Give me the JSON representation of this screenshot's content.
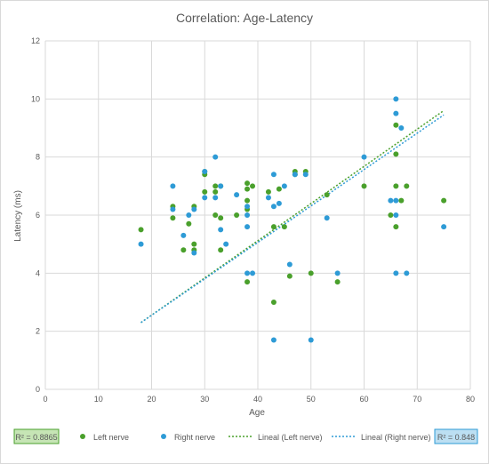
{
  "chart_data": {
    "type": "scatter",
    "title": "Correlation: Age-Latency",
    "xlabel": "Age",
    "ylabel": "Latency (ms)",
    "xlim": [
      0,
      80
    ],
    "ylim": [
      0,
      12
    ],
    "x_ticks": [
      "0",
      "10",
      "20",
      "30",
      "40",
      "50",
      "60",
      "70",
      "80"
    ],
    "y_ticks": [
      "0",
      "2",
      "4",
      "6",
      "8",
      "10",
      "12"
    ],
    "grid": "major-both",
    "legend_position": "bottom",
    "series": [
      {
        "name": "Left nerve",
        "color": "#4aa02c",
        "points": [
          [
            18,
            5.5
          ],
          [
            24,
            5.9
          ],
          [
            24,
            6.3
          ],
          [
            26,
            4.8
          ],
          [
            27,
            5.7
          ],
          [
            28,
            5.0
          ],
          [
            28,
            4.8
          ],
          [
            28,
            6.3
          ],
          [
            30,
            6.8
          ],
          [
            30,
            7.4
          ],
          [
            30,
            7.5
          ],
          [
            32,
            6.8
          ],
          [
            32,
            7.0
          ],
          [
            32,
            6.0
          ],
          [
            33,
            4.8
          ],
          [
            33,
            5.9
          ],
          [
            33,
            7.0
          ],
          [
            36,
            6.0
          ],
          [
            38,
            3.7
          ],
          [
            38,
            6.2
          ],
          [
            38,
            6.5
          ],
          [
            38,
            6.9
          ],
          [
            38,
            7.1
          ],
          [
            39,
            7.0
          ],
          [
            42,
            6.8
          ],
          [
            43,
            3.0
          ],
          [
            43,
            5.6
          ],
          [
            44,
            6.9
          ],
          [
            45,
            5.6
          ],
          [
            46,
            3.9
          ],
          [
            47,
            7.4
          ],
          [
            47,
            7.5
          ],
          [
            49,
            7.5
          ],
          [
            50,
            4.0
          ],
          [
            53,
            6.7
          ],
          [
            55,
            3.7
          ],
          [
            60,
            7.0
          ],
          [
            65,
            6.0
          ],
          [
            66,
            5.6
          ],
          [
            66,
            7.0
          ],
          [
            66,
            8.1
          ],
          [
            66,
            9.1
          ],
          [
            67,
            6.5
          ],
          [
            68,
            7.0
          ],
          [
            75,
            6.5
          ]
        ]
      },
      {
        "name": "Right nerve",
        "color": "#2e9bd6",
        "points": [
          [
            18,
            5.0
          ],
          [
            24,
            6.2
          ],
          [
            24,
            7.0
          ],
          [
            26,
            5.3
          ],
          [
            27,
            6.0
          ],
          [
            28,
            4.7
          ],
          [
            28,
            6.2
          ],
          [
            30,
            6.6
          ],
          [
            30,
            7.5
          ],
          [
            32,
            6.6
          ],
          [
            32,
            8.0
          ],
          [
            33,
            5.5
          ],
          [
            33,
            7.0
          ],
          [
            34,
            5.0
          ],
          [
            36,
            6.7
          ],
          [
            38,
            4.0
          ],
          [
            38,
            5.6
          ],
          [
            38,
            6.0
          ],
          [
            38,
            6.3
          ],
          [
            39,
            4.0
          ],
          [
            42,
            6.6
          ],
          [
            43,
            1.7
          ],
          [
            43,
            6.3
          ],
          [
            43,
            7.4
          ],
          [
            44,
            6.4
          ],
          [
            45,
            7.0
          ],
          [
            46,
            4.3
          ],
          [
            47,
            7.4
          ],
          [
            49,
            7.4
          ],
          [
            50,
            1.7
          ],
          [
            53,
            5.9
          ],
          [
            55,
            4.0
          ],
          [
            60,
            8.0
          ],
          [
            65,
            6.5
          ],
          [
            66,
            4.0
          ],
          [
            66,
            6.0
          ],
          [
            66,
            6.5
          ],
          [
            66,
            9.5
          ],
          [
            66,
            10.0
          ],
          [
            67,
            9.0
          ],
          [
            68,
            4.0
          ],
          [
            75,
            5.6
          ]
        ]
      }
    ],
    "trendlines": [
      {
        "name": "Lineal (Left nerve)",
        "color": "#4aa02c",
        "x": [
          18,
          75
        ],
        "y": [
          2.3,
          9.6
        ],
        "r2_label": "R² = 0.8865",
        "r2_fill": "#c6e5b5",
        "r2_border": "#4aa02c"
      },
      {
        "name": "Lineal (Right nerve)",
        "color": "#2e9bd6",
        "x": [
          18,
          75
        ],
        "y": [
          2.3,
          9.45
        ],
        "r2_label": "R² = 0.848",
        "r2_fill": "#bcdff2",
        "r2_border": "#2e9bd6"
      }
    ],
    "gridline_color": "#d9d9d9"
  }
}
